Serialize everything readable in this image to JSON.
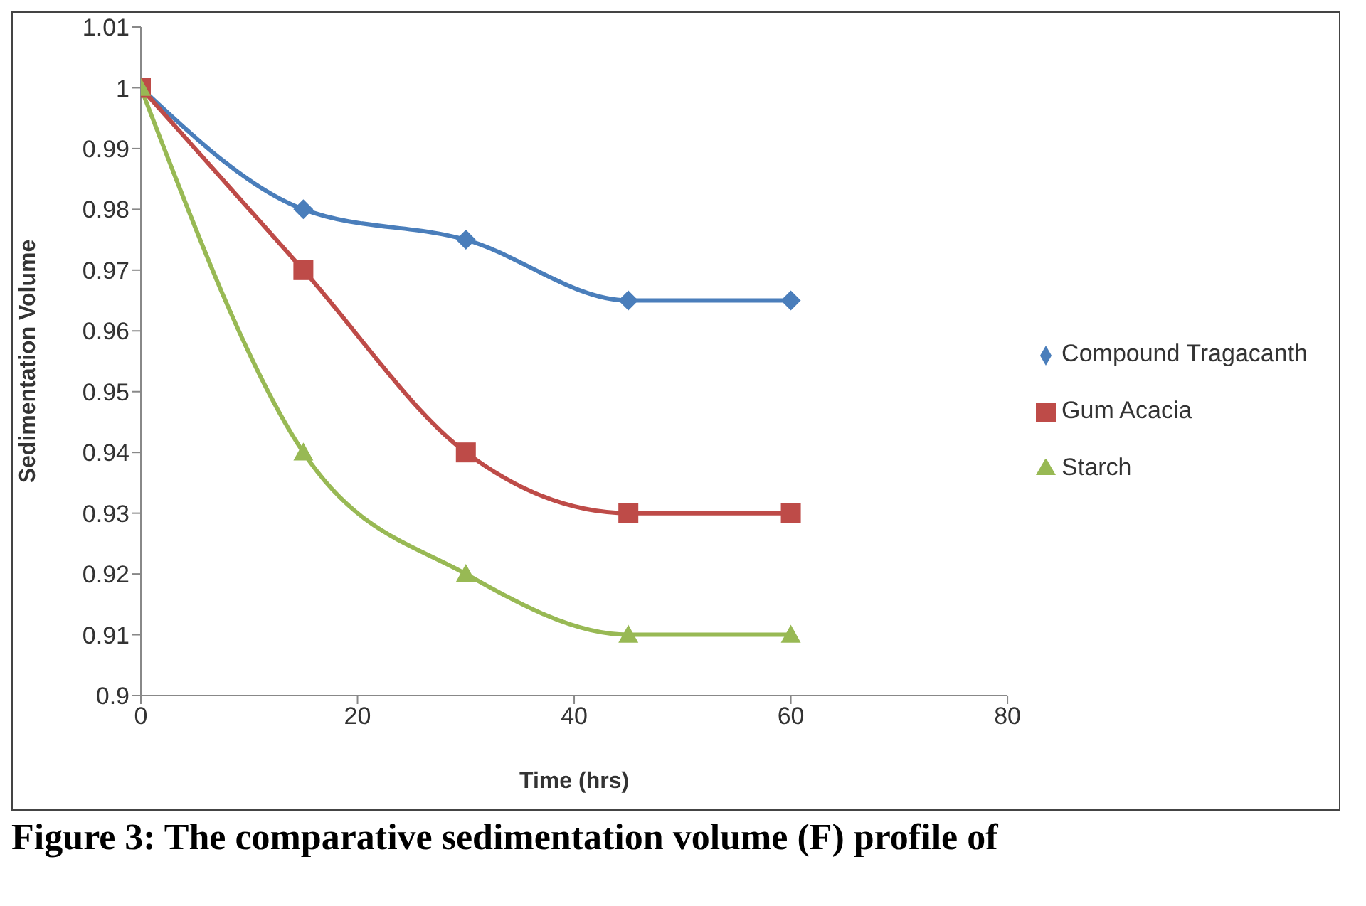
{
  "chart_data": {
    "type": "line",
    "xlabel": "Time (hrs)",
    "ylabel": "Sedimentation Volume",
    "x": [
      0,
      15,
      30,
      45,
      60
    ],
    "series": [
      {
        "name": "Compound Tragacanth",
        "color": "#4a7ebb",
        "values": [
          1,
          0.98,
          0.975,
          0.965,
          0.965
        ],
        "marker": "diamond"
      },
      {
        "name": "Gum Acacia",
        "color": "#be4b48",
        "values": [
          1,
          0.97,
          0.94,
          0.93,
          0.93
        ],
        "marker": "square"
      },
      {
        "name": "Starch",
        "color": "#98b954",
        "values": [
          1,
          0.94,
          0.92,
          0.91,
          0.91
        ],
        "marker": "triangle"
      }
    ],
    "xlim": [
      0,
      80
    ],
    "xticks": [
      0,
      20,
      40,
      60,
      80
    ],
    "ylim": [
      0.9,
      1.01
    ],
    "yticks": [
      0.9,
      0.91,
      0.92,
      0.93,
      0.94,
      0.95,
      0.96,
      0.97,
      0.98,
      0.99,
      1,
      1.01
    ],
    "grid": false,
    "legend": "right",
    "line_style": "solid",
    "annotations": [
      "Figure 3: The comparative sedimentation volume (F) profile of"
    ]
  }
}
